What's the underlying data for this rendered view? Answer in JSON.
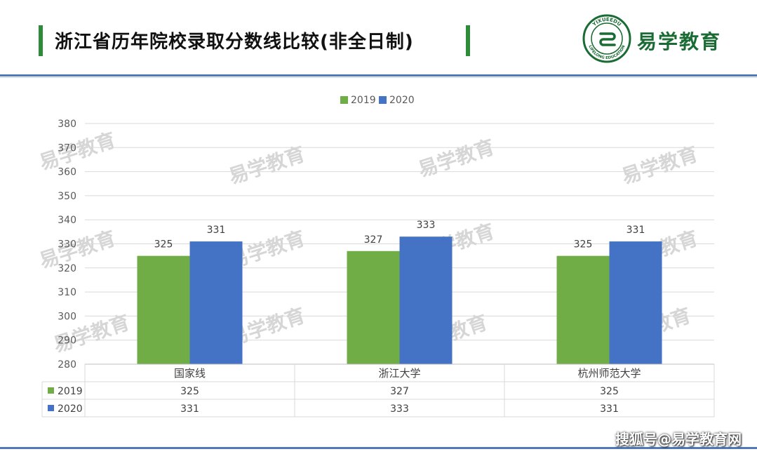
{
  "header": {
    "title": "浙江省历年院校录取分数线比较(非全日制)",
    "brand_text": "易学教育",
    "logo_ring_top": "YIXUEEDU",
    "logo_ring_bottom": "LIFELONG EDUCATION",
    "accent_color": "#2e8b3a"
  },
  "chart_data": {
    "type": "bar",
    "categories": [
      "国家线",
      "浙江大学",
      "杭州师范大学"
    ],
    "series": [
      {
        "name": "2019",
        "values": [
          325,
          327,
          325
        ],
        "color": "#70ad47"
      },
      {
        "name": "2020",
        "values": [
          331,
          333,
          331
        ],
        "color": "#4472c4"
      }
    ],
    "ylim": [
      280,
      380
    ],
    "yticks": [
      280,
      290,
      300,
      310,
      320,
      330,
      340,
      350,
      360,
      370,
      380
    ],
    "legend": "top",
    "grid": true,
    "data_table": true
  },
  "watermark": {
    "text": "易学教育"
  },
  "footer": {
    "text": "搜狐号@易学教育网"
  }
}
